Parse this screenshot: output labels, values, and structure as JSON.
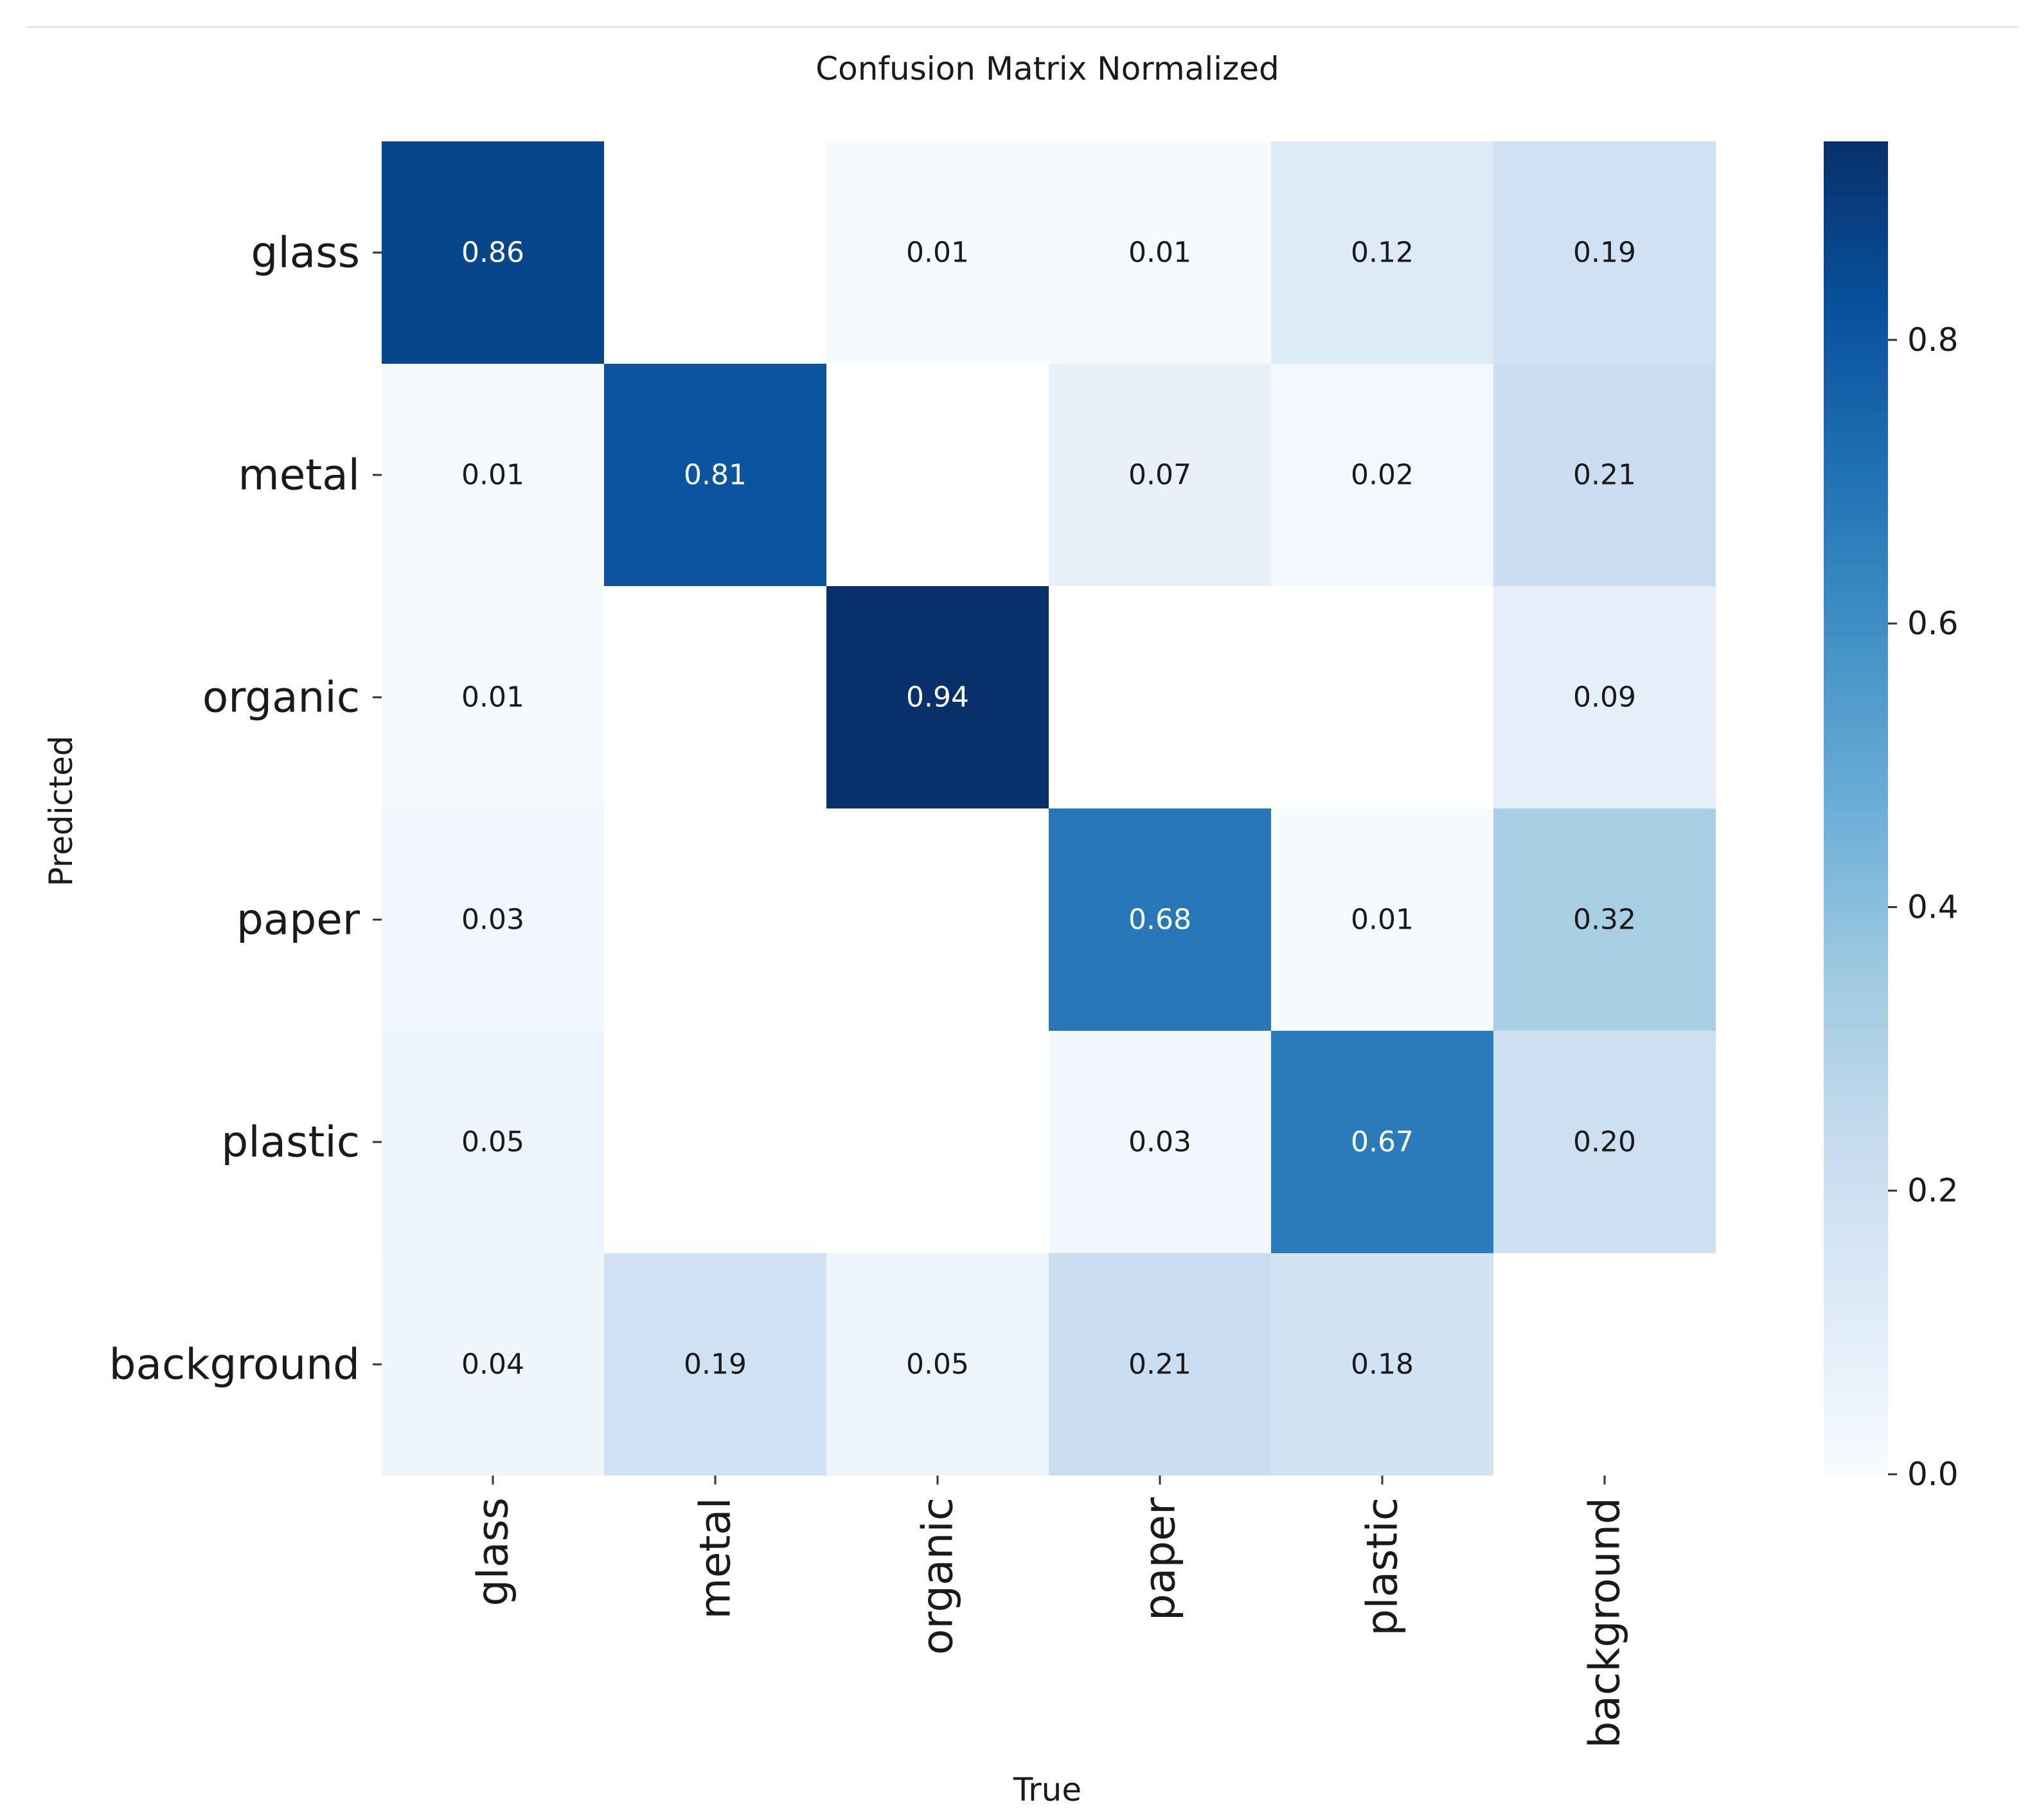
{
  "chart_data": {
    "type": "heatmap",
    "title": "Confusion Matrix Normalized",
    "xlabel": "True",
    "ylabel": "Predicted",
    "x_categories": [
      "glass",
      "metal",
      "organic",
      "paper",
      "plastic",
      "background"
    ],
    "y_categories": [
      "glass",
      "metal",
      "organic",
      "paper",
      "plastic",
      "background"
    ],
    "values": [
      [
        0.86,
        null,
        0.01,
        0.01,
        0.12,
        0.19
      ],
      [
        0.01,
        0.81,
        null,
        0.07,
        0.02,
        0.21
      ],
      [
        0.01,
        null,
        0.94,
        null,
        null,
        0.09
      ],
      [
        0.03,
        null,
        null,
        0.68,
        0.01,
        0.32
      ],
      [
        0.05,
        null,
        null,
        0.03,
        0.67,
        0.2
      ],
      [
        0.04,
        0.19,
        0.05,
        0.21,
        0.18,
        null
      ]
    ],
    "colorbar": {
      "range": [
        0.0,
        0.94
      ],
      "ticks": [
        0.0,
        0.2,
        0.4,
        0.6,
        0.8
      ],
      "tick_labels": [
        "0.0",
        "0.2",
        "0.4",
        "0.6",
        "0.8"
      ]
    },
    "colormap": "Blues",
    "grid": false
  }
}
